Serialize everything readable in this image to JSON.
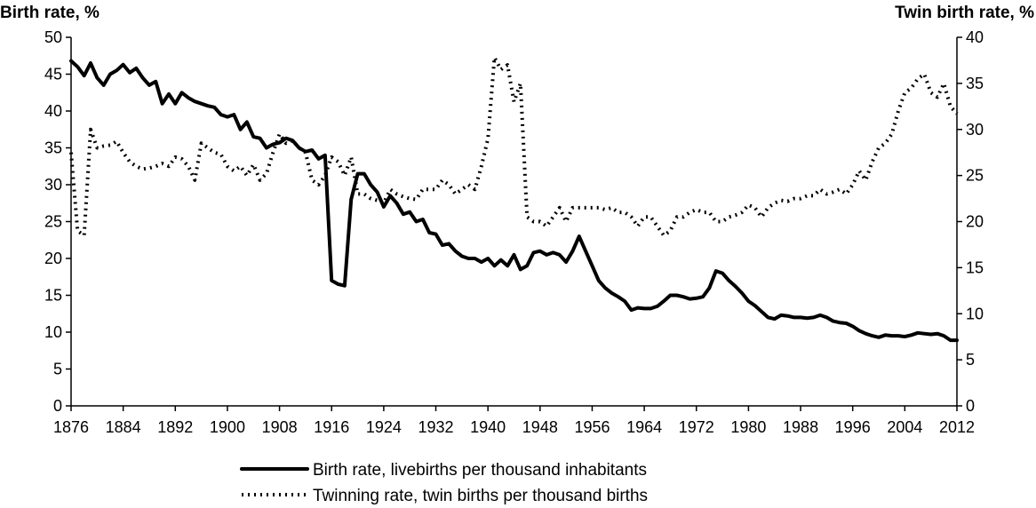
{
  "chart_data": {
    "type": "line",
    "title": "",
    "ylabel": "Birth rate, %",
    "y2label": "Twin birth rate, %",
    "xlabel": "",
    "xlim": [
      1876,
      2012
    ],
    "ylim": [
      0,
      50
    ],
    "y2lim": [
      0,
      40
    ],
    "x_ticks": [
      1876,
      1884,
      1892,
      1900,
      1908,
      1916,
      1924,
      1932,
      1940,
      1948,
      1956,
      1964,
      1972,
      1980,
      1988,
      1996,
      2004,
      2012
    ],
    "y_ticks": [
      0,
      5,
      10,
      15,
      20,
      25,
      30,
      35,
      40,
      45,
      50
    ],
    "y2_ticks": [
      0,
      5,
      10,
      15,
      20,
      25,
      30,
      35,
      40
    ],
    "legend": [
      {
        "label": "Birth rate, livebirths per thousand inhabitants",
        "style": "solid"
      },
      {
        "label": "Twinning rate, twin births per thousand births",
        "style": "dotted"
      }
    ],
    "series": [
      {
        "name": "Birth rate, livebirths per thousand inhabitants",
        "axis": "left",
        "style": "solid",
        "points": [
          [
            1876,
            46.8
          ],
          [
            1877,
            46
          ],
          [
            1878,
            44.8
          ],
          [
            1879,
            46.5
          ],
          [
            1880,
            44.5
          ],
          [
            1881,
            43.5
          ],
          [
            1882,
            45
          ],
          [
            1883,
            45.5
          ],
          [
            1884,
            46.3
          ],
          [
            1885,
            45.2
          ],
          [
            1886,
            45.8
          ],
          [
            1887,
            44.5
          ],
          [
            1888,
            43.5
          ],
          [
            1889,
            44
          ],
          [
            1890,
            41
          ],
          [
            1891,
            42.3
          ],
          [
            1892,
            41
          ],
          [
            1893,
            42.5
          ],
          [
            1894,
            41.8
          ],
          [
            1895,
            41.3
          ],
          [
            1896,
            41
          ],
          [
            1897,
            40.7
          ],
          [
            1898,
            40.5
          ],
          [
            1899,
            39.5
          ],
          [
            1900,
            39.2
          ],
          [
            1901,
            39.5
          ],
          [
            1902,
            37.5
          ],
          [
            1903,
            38.5
          ],
          [
            1904,
            36.5
          ],
          [
            1905,
            36.3
          ],
          [
            1906,
            35
          ],
          [
            1907,
            35.5
          ],
          [
            1908,
            35.7
          ],
          [
            1909,
            36.3
          ],
          [
            1910,
            36
          ],
          [
            1911,
            35
          ],
          [
            1912,
            34.5
          ],
          [
            1913,
            34.7
          ],
          [
            1914,
            33.5
          ],
          [
            1915,
            34
          ],
          [
            1916,
            17
          ],
          [
            1917,
            16.5
          ],
          [
            1918,
            16.3
          ],
          [
            1919,
            28
          ],
          [
            1920,
            31.5
          ],
          [
            1921,
            31.5
          ],
          [
            1922,
            30
          ],
          [
            1923,
            29
          ],
          [
            1924,
            27
          ],
          [
            1925,
            28.5
          ],
          [
            1926,
            27.5
          ],
          [
            1927,
            26
          ],
          [
            1928,
            26.3
          ],
          [
            1929,
            25
          ],
          [
            1930,
            25.3
          ],
          [
            1931,
            23.5
          ],
          [
            1932,
            23.3
          ],
          [
            1933,
            21.8
          ],
          [
            1934,
            22
          ],
          [
            1935,
            21
          ],
          [
            1936,
            20.3
          ],
          [
            1937,
            20
          ],
          [
            1938,
            20
          ],
          [
            1939,
            19.5
          ],
          [
            1940,
            20
          ],
          [
            1941,
            19
          ],
          [
            1942,
            19.8
          ],
          [
            1943,
            19
          ],
          [
            1944,
            20.5
          ],
          [
            1945,
            18.5
          ],
          [
            1946,
            19
          ],
          [
            1947,
            20.8
          ],
          [
            1948,
            21
          ],
          [
            1949,
            20.5
          ],
          [
            1950,
            20.8
          ],
          [
            1951,
            20.5
          ],
          [
            1952,
            19.5
          ],
          [
            1953,
            21
          ],
          [
            1954,
            23
          ],
          [
            1955,
            21
          ],
          [
            1956,
            19
          ],
          [
            1957,
            17
          ],
          [
            1958,
            16
          ],
          [
            1959,
            15.3
          ],
          [
            1960,
            14.8
          ],
          [
            1961,
            14.2
          ],
          [
            1962,
            13
          ],
          [
            1963,
            13.3
          ],
          [
            1964,
            13.2
          ],
          [
            1965,
            13.2
          ],
          [
            1966,
            13.5
          ],
          [
            1967,
            14.2
          ],
          [
            1968,
            15
          ],
          [
            1969,
            15
          ],
          [
            1970,
            14.8
          ],
          [
            1971,
            14.5
          ],
          [
            1972,
            14.6
          ],
          [
            1973,
            14.8
          ],
          [
            1974,
            16
          ],
          [
            1975,
            18.3
          ],
          [
            1976,
            18
          ],
          [
            1977,
            17
          ],
          [
            1978,
            16.2
          ],
          [
            1979,
            15.3
          ],
          [
            1980,
            14.2
          ],
          [
            1981,
            13.6
          ],
          [
            1982,
            12.8
          ],
          [
            1983,
            12
          ],
          [
            1984,
            11.8
          ],
          [
            1985,
            12.3
          ],
          [
            1986,
            12.2
          ],
          [
            1987,
            12
          ],
          [
            1988,
            12
          ],
          [
            1989,
            11.9
          ],
          [
            1990,
            12
          ],
          [
            1991,
            12.3
          ],
          [
            1992,
            12
          ],
          [
            1993,
            11.5
          ],
          [
            1994,
            11.3
          ],
          [
            1995,
            11.2
          ],
          [
            1996,
            10.8
          ],
          [
            1997,
            10.2
          ],
          [
            1998,
            9.8
          ],
          [
            1999,
            9.5
          ],
          [
            2000,
            9.3
          ],
          [
            2001,
            9.6
          ],
          [
            2002,
            9.5
          ],
          [
            2003,
            9.5
          ],
          [
            2004,
            9.4
          ],
          [
            2005,
            9.6
          ],
          [
            2006,
            9.9
          ],
          [
            2007,
            9.8
          ],
          [
            2008,
            9.7
          ],
          [
            2009,
            9.8
          ],
          [
            2010,
            9.5
          ],
          [
            2011,
            8.9
          ],
          [
            2012,
            8.9
          ]
        ]
      },
      {
        "name": "Twinning rate, twin births per thousand births",
        "axis": "right",
        "style": "dotted",
        "points": [
          [
            1876,
            27.5
          ],
          [
            1877,
            19
          ],
          [
            1878,
            18.5
          ],
          [
            1879,
            30
          ],
          [
            1880,
            28
          ],
          [
            1881,
            28.2
          ],
          [
            1882,
            28.3
          ],
          [
            1883,
            28.7
          ],
          [
            1884,
            27.5
          ],
          [
            1885,
            26.5
          ],
          [
            1886,
            26
          ],
          [
            1887,
            25.7
          ],
          [
            1888,
            25.8
          ],
          [
            1889,
            26
          ],
          [
            1890,
            26.3
          ],
          [
            1891,
            26
          ],
          [
            1892,
            27
          ],
          [
            1893,
            26.8
          ],
          [
            1894,
            26
          ],
          [
            1895,
            24.5
          ],
          [
            1896,
            28.5
          ],
          [
            1897,
            28
          ],
          [
            1898,
            27.5
          ],
          [
            1899,
            27.3
          ],
          [
            1900,
            26
          ],
          [
            1901,
            25.5
          ],
          [
            1902,
            26
          ],
          [
            1903,
            25
          ],
          [
            1904,
            26.2
          ],
          [
            1905,
            24.5
          ],
          [
            1906,
            25.2
          ],
          [
            1907,
            27.5
          ],
          [
            1908,
            29.5
          ],
          [
            1909,
            28.5
          ],
          [
            1910,
            28.8
          ],
          [
            1911,
            28
          ],
          [
            1912,
            27.5
          ],
          [
            1913,
            24.5
          ],
          [
            1914,
            24
          ],
          [
            1915,
            25
          ],
          [
            1916,
            27
          ],
          [
            1917,
            26.5
          ],
          [
            1918,
            25
          ],
          [
            1919,
            27
          ],
          [
            1920,
            23
          ],
          [
            1921,
            23
          ],
          [
            1922,
            22.5
          ],
          [
            1923,
            22.3
          ],
          [
            1924,
            22
          ],
          [
            1925,
            23.5
          ],
          [
            1926,
            23
          ],
          [
            1927,
            22.7
          ],
          [
            1928,
            22.5
          ],
          [
            1929,
            22.4
          ],
          [
            1930,
            23.5
          ],
          [
            1931,
            23.5
          ],
          [
            1932,
            23.5
          ],
          [
            1933,
            24.5
          ],
          [
            1934,
            24
          ],
          [
            1935,
            23
          ],
          [
            1936,
            23.5
          ],
          [
            1937,
            24
          ],
          [
            1938,
            23.5
          ],
          [
            1939,
            26
          ],
          [
            1940,
            29
          ],
          [
            1941,
            37.8
          ],
          [
            1942,
            36.5
          ],
          [
            1943,
            37
          ],
          [
            1944,
            33
          ],
          [
            1945,
            35
          ],
          [
            1946,
            20.5
          ],
          [
            1947,
            20
          ],
          [
            1948,
            20
          ],
          [
            1949,
            19.5
          ],
          [
            1950,
            20.5
          ],
          [
            1951,
            21.5
          ],
          [
            1952,
            20
          ],
          [
            1953,
            21.5
          ],
          [
            1954,
            21.5
          ],
          [
            1955,
            21.5
          ],
          [
            1956,
            21.5
          ],
          [
            1957,
            21.5
          ],
          [
            1958,
            21.3
          ],
          [
            1959,
            21.5
          ],
          [
            1960,
            21
          ],
          [
            1961,
            21
          ],
          [
            1962,
            20.5
          ],
          [
            1963,
            19.5
          ],
          [
            1964,
            20.5
          ],
          [
            1965,
            20.5
          ],
          [
            1966,
            19.5
          ],
          [
            1967,
            18.5
          ],
          [
            1968,
            19
          ],
          [
            1969,
            20.5
          ],
          [
            1970,
            20.5
          ],
          [
            1971,
            21
          ],
          [
            1972,
            21.3
          ],
          [
            1973,
            21
          ],
          [
            1974,
            21
          ],
          [
            1975,
            20
          ],
          [
            1976,
            20
          ],
          [
            1977,
            20.5
          ],
          [
            1978,
            20.7
          ],
          [
            1979,
            21
          ],
          [
            1980,
            21.8
          ],
          [
            1981,
            21.5
          ],
          [
            1982,
            20.5
          ],
          [
            1983,
            21.5
          ],
          [
            1984,
            22
          ],
          [
            1985,
            22.3
          ],
          [
            1986,
            22.2
          ],
          [
            1987,
            22.5
          ],
          [
            1988,
            22.5
          ],
          [
            1989,
            22.8
          ],
          [
            1990,
            22.8
          ],
          [
            1991,
            23.5
          ],
          [
            1992,
            23
          ],
          [
            1993,
            23.2
          ],
          [
            1994,
            23.5
          ],
          [
            1995,
            23
          ],
          [
            1996,
            24
          ],
          [
            1997,
            25.5
          ],
          [
            1998,
            24.5
          ],
          [
            1999,
            26.5
          ],
          [
            2000,
            28
          ],
          [
            2001,
            28.5
          ],
          [
            2002,
            29.5
          ],
          [
            2003,
            32
          ],
          [
            2004,
            34
          ],
          [
            2005,
            34.5
          ],
          [
            2006,
            35.5
          ],
          [
            2007,
            36
          ],
          [
            2008,
            34
          ],
          [
            2009,
            33.5
          ],
          [
            2010,
            35
          ],
          [
            2011,
            32.5
          ],
          [
            2012,
            31.7
          ]
        ]
      }
    ]
  }
}
